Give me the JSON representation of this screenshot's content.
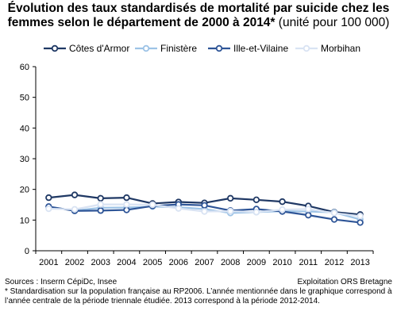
{
  "header": {
    "title_line1": "Évolution des taux standardisés de mortalité par suicide chez les",
    "title_line2": "femmes selon le département de 2000 à 2014*",
    "title_unit": "(unité pour 100 000)"
  },
  "footer": {
    "sources": "Sources : Inserm CépiDc, Insee",
    "exploitation": "Exploitation ORS Bretagne",
    "footnote": "* Standardisation sur la population française au RP2006. L’année mentionnée dans le graphique correspond à l’année centrale de la période triennale étudiée. 2013 correspond à la période 2012-2014."
  },
  "chart_data": {
    "type": "line",
    "x": [
      "2001",
      "2002",
      "2003",
      "2004",
      "2005",
      "2006",
      "2007",
      "2008",
      "2009",
      "2010",
      "2011",
      "2012",
      "2013"
    ],
    "ylim": [
      0,
      60
    ],
    "yticks": [
      0,
      10,
      20,
      30,
      40,
      50,
      60
    ],
    "grid": false,
    "legend_position": "top",
    "series": [
      {
        "name": "Côtes d'Armor",
        "color": "#1f3864",
        "values": [
          17.3,
          18.2,
          17.1,
          17.3,
          15.4,
          15.9,
          15.6,
          17.1,
          16.6,
          16.0,
          14.6,
          12.6,
          11.8
        ]
      },
      {
        "name": "Finistère",
        "color": "#9dc3e6",
        "values": [
          14.3,
          13.1,
          14.0,
          14.1,
          14.4,
          14.2,
          13.6,
          12.3,
          12.6,
          12.9,
          12.8,
          12.5,
          10.2
        ]
      },
      {
        "name": "Ille-et-Vilaine",
        "color": "#2e5597",
        "values": [
          14.4,
          13.0,
          13.1,
          13.3,
          14.6,
          15.1,
          14.8,
          13.1,
          13.6,
          12.8,
          11.6,
          10.2,
          9.2
        ]
      },
      {
        "name": "Morbihan",
        "color": "#d9e3f3",
        "values": [
          13.7,
          13.5,
          15.1,
          15.1,
          15.0,
          13.8,
          12.8,
          12.9,
          12.6,
          13.4,
          13.6,
          12.3,
          11.3
        ]
      }
    ]
  }
}
